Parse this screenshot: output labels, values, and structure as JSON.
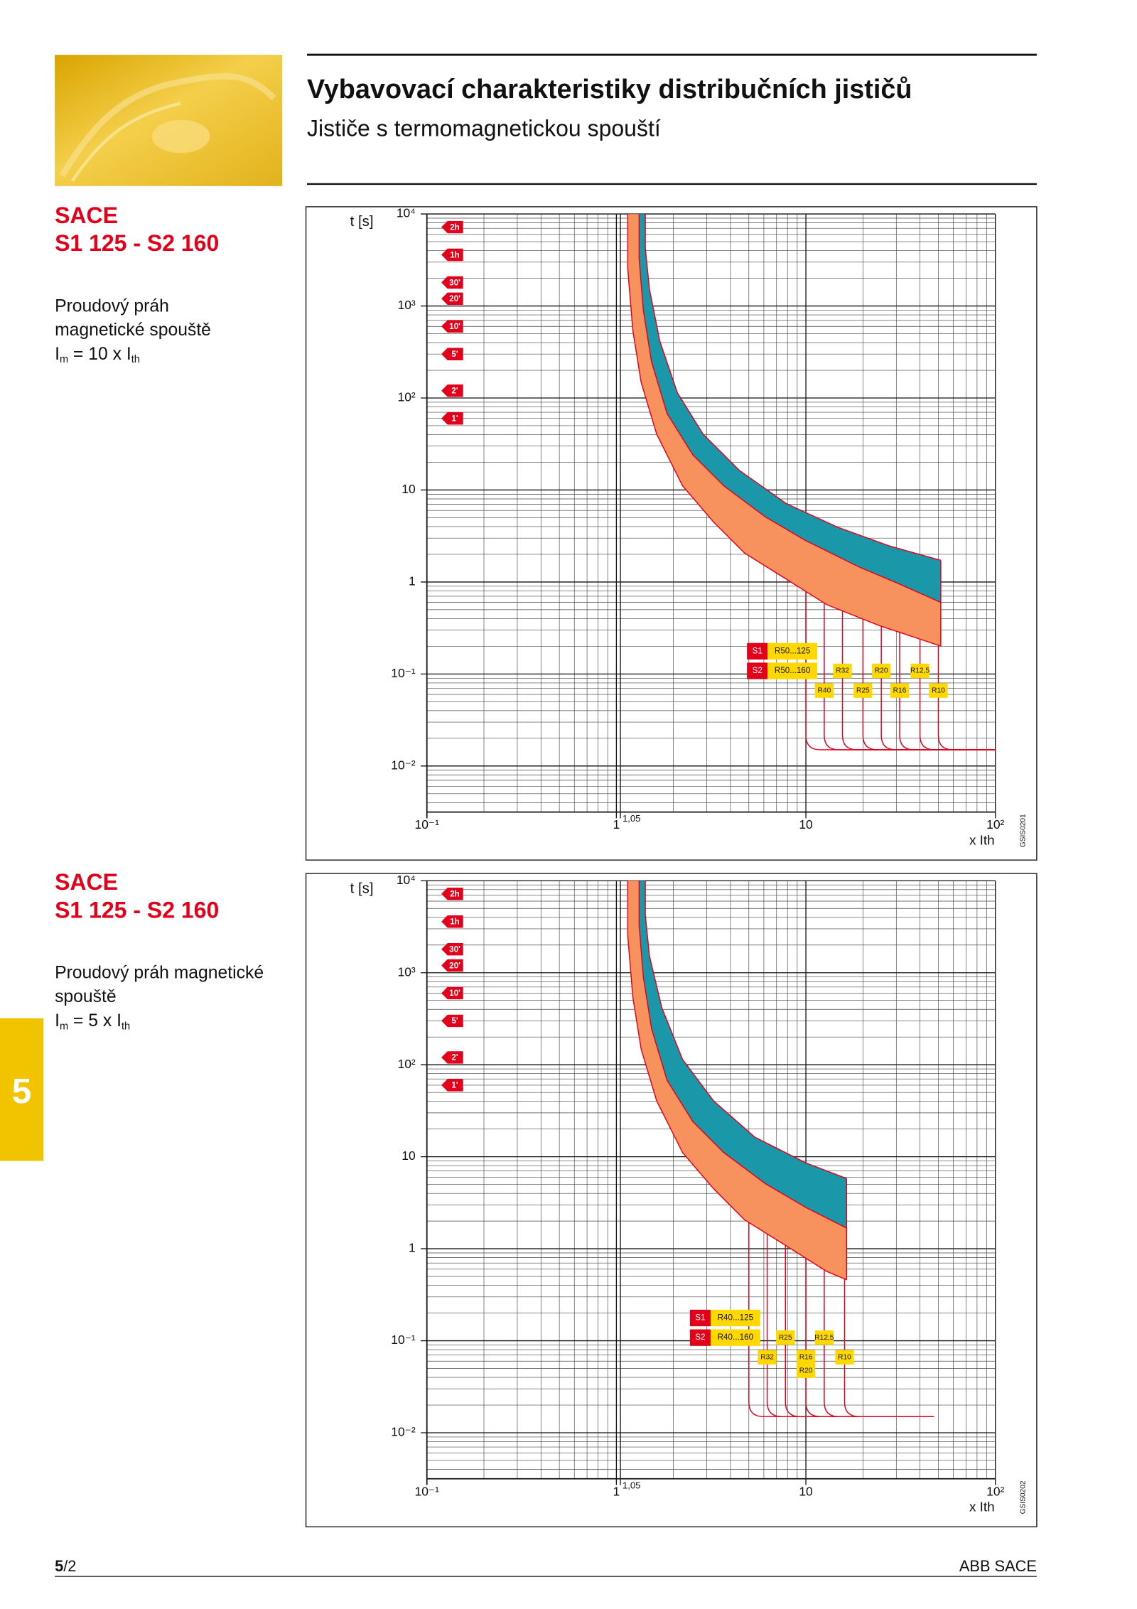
{
  "header": {
    "title": "Vybavovací charakteristiky distribučních jističů",
    "subtitle": "Jističe s termomagnetickou spouští"
  },
  "sections": [
    {
      "heading": [
        "SACE",
        "S1 125 - S2 160"
      ],
      "note": [
        "Proudový práh",
        "magnetické spouště"
      ],
      "formula": [
        "I",
        "m",
        " = 10 x I",
        "th"
      ]
    },
    {
      "heading": [
        "SACE",
        "S1 125 - S2 160"
      ],
      "note": [
        "Proudový práh magnetické",
        "spouště"
      ],
      "formula": [
        "I",
        "m",
        " = 5 x I",
        "th"
      ]
    }
  ],
  "side_tab": "5",
  "footer": {
    "page_bold": "5",
    "page_rest": "/2",
    "brand": "ABB SACE"
  },
  "chart_data": [
    {
      "type": "line",
      "y_label": "t [s]",
      "x_label": "x Ith",
      "code": "GSIS0201",
      "log_x": true,
      "log_y": true,
      "grid": true,
      "xlim": [
        0.1,
        100
      ],
      "ylim": [
        0.00316,
        10000
      ],
      "xticks": [
        {
          "value": 0.1,
          "label": "10⁻¹"
        },
        1,
        {
          "value": 1.05,
          "label": "1,05"
        },
        10,
        {
          "value": 100,
          "label": "10²"
        }
      ],
      "yticks": [
        {
          "value": 10000,
          "label": "10⁴"
        },
        {
          "value": 1000,
          "label": "10³"
        },
        {
          "value": 100,
          "label": "10²"
        },
        10,
        1,
        {
          "value": 0.1,
          "label": "10⁻¹"
        },
        {
          "value": 0.01,
          "label": "10⁻²"
        }
      ],
      "time_markers": [
        {
          "value": 7200,
          "label": "2h"
        },
        {
          "value": 3600,
          "label": "1h"
        },
        {
          "value": 1800,
          "label": "30'"
        },
        {
          "value": 1200,
          "label": "20'"
        },
        {
          "value": 600,
          "label": "10'"
        },
        {
          "value": 300,
          "label": "5'"
        },
        {
          "value": 120,
          "label": "2'"
        },
        {
          "value": 60,
          "label": "1'"
        }
      ],
      "line_color": "#e2001a",
      "band_colors": [
        "#f7915e",
        "#1a97a8"
      ],
      "curves": [
        {
          "x": [
            1.148,
            1.148,
            1.222,
            1.352,
            1.632,
            2.235,
            3.26,
            4.75,
            7.85,
            12.9,
            24.3,
            51.5
          ],
          "values": [
            10000,
            2535,
            537,
            147,
            40.4,
            11.1,
            4.48,
            2.06,
            1.08,
            0.566,
            0.337,
            0.201
          ]
        },
        {
          "x": [
            1.318,
            1.318,
            1.387,
            1.533,
            1.851,
            2.532,
            3.69,
            6.11,
            10,
            18.9,
            31.2,
            51.5
          ],
          "values": [
            10000,
            3288,
            902,
            247,
            67.8,
            24.1,
            11.1,
            5.1,
            2.81,
            1.47,
            0.95,
            0.6
          ]
        },
        {
          "x": [
            1.421,
            1.421,
            1.495,
            1.695,
            2.098,
            2.87,
            4.46,
            7.85,
            14.7,
            27.5,
            51.5
          ],
          "values": [
            10000,
            4256,
            1514,
            415,
            114,
            40.4,
            16.3,
            7.14,
            3.94,
            2.47,
            1.72
          ]
        }
      ],
      "floor": {
        "t": 0.015,
        "x_end": 100
      },
      "rating_tags": [
        {
          "label": "S1",
          "text": "R50...125",
          "x": 10
        },
        {
          "label": "S2",
          "text": "R50...160",
          "x": 10
        }
      ],
      "tags": [
        {
          "text": "R40",
          "x": 12.5
        },
        {
          "text": "R32",
          "x": 15.6
        },
        {
          "text": "R25",
          "x": 20
        },
        {
          "text": "R20",
          "x": 25
        },
        {
          "text": "R16",
          "x": 31.25
        },
        {
          "text": "R12,5",
          "x": 40
        },
        {
          "text": "R10",
          "x": 50
        }
      ]
    },
    {
      "type": "line",
      "y_label": "t [s]",
      "x_label": "x Ith",
      "code": "GSIS0202",
      "log_x": true,
      "log_y": true,
      "grid": true,
      "xlim": [
        0.1,
        100
      ],
      "ylim": [
        0.00316,
        10000
      ],
      "xticks": [
        {
          "value": 0.1,
          "label": "10⁻¹"
        },
        1,
        {
          "value": 1.05,
          "label": "1,05"
        },
        10,
        {
          "value": 100,
          "label": "10²"
        }
      ],
      "yticks": [
        {
          "value": 10000,
          "label": "10⁴"
        },
        {
          "value": 1000,
          "label": "10³"
        },
        {
          "value": 100,
          "label": "10²"
        },
        10,
        1,
        {
          "value": 0.1,
          "label": "10⁻¹"
        },
        {
          "value": 0.01,
          "label": "10⁻²"
        }
      ],
      "time_markers": [
        {
          "value": 7200,
          "label": "2h"
        },
        {
          "value": 3600,
          "label": "1h"
        },
        {
          "value": 1800,
          "label": "30'"
        },
        {
          "value": 1200,
          "label": "20'"
        },
        {
          "value": 600,
          "label": "10'"
        },
        {
          "value": 300,
          "label": "5'"
        },
        {
          "value": 120,
          "label": "2'"
        },
        {
          "value": 60,
          "label": "1'"
        }
      ],
      "line_color": "#e2001a",
      "band_colors": [
        "#f7915e",
        "#1a97a8"
      ],
      "curves": [
        {
          "x": [
            1.148,
            1.148,
            1.222,
            1.352,
            1.632,
            2.235,
            3.26,
            4.75,
            7.85,
            12.9,
            16.4
          ],
          "values": [
            10000,
            2535,
            537,
            147,
            40.4,
            11.1,
            4.48,
            2.06,
            1.08,
            0.566,
            0.46
          ]
        },
        {
          "x": [
            1.318,
            1.318,
            1.387,
            1.533,
            1.851,
            2.532,
            3.69,
            6.11,
            10,
            16.4
          ],
          "values": [
            10000,
            3288,
            902,
            247,
            67.8,
            24.1,
            11.1,
            5.1,
            2.81,
            1.68
          ]
        },
        {
          "x": [
            1.421,
            1.421,
            1.495,
            1.738,
            2.235,
            3.26,
            5.38,
            10,
            16.4
          ],
          "values": [
            10000,
            4256,
            1514,
            415,
            114,
            40.4,
            16.3,
            8.57,
            5.8
          ]
        }
      ],
      "floor": {
        "t": 0.015,
        "x_end": 47.5
      },
      "rating_tags": [
        {
          "label": "S1",
          "text": "R40...125",
          "x": 5
        },
        {
          "label": "S2",
          "text": "R40...160",
          "x": 5
        }
      ],
      "tags": [
        {
          "text": "R32",
          "x": 6.25
        },
        {
          "text": "R25",
          "x": 7.8
        },
        {
          "text": "R16",
          "x": 10
        },
        {
          "text": "R20",
          "x": 10
        },
        {
          "text": "R12,5",
          "x": 12.5
        },
        {
          "text": "R10",
          "x": 16
        }
      ]
    }
  ]
}
